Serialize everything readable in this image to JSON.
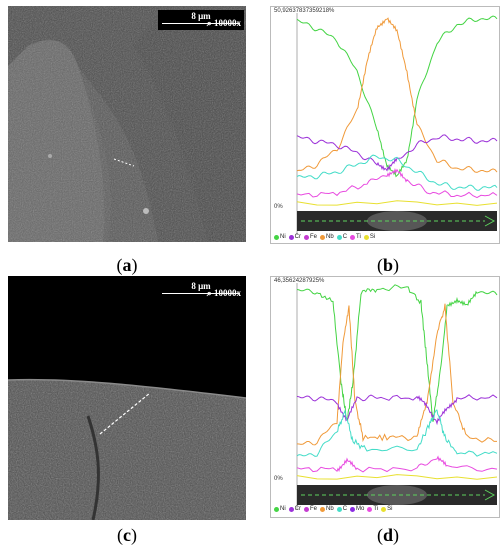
{
  "panels": {
    "a": {
      "caption_open": "(",
      "letter": "a",
      "caption_close": ")",
      "scale": "8 μm",
      "mag": "10000x"
    },
    "b": {
      "caption_open": "(",
      "letter": "b",
      "caption_close": ")",
      "header": "50,92637837359218%",
      "zero": "0%",
      "legend": [
        {
          "name": "Ni",
          "color": "#44d444"
        },
        {
          "name": "Cr",
          "color": "#9b30d8"
        },
        {
          "name": "Fe",
          "color": "#c43ad0"
        },
        {
          "name": "Nb",
          "color": "#f09a3a"
        },
        {
          "name": "C",
          "color": "#44dcc8"
        },
        {
          "name": "Ti",
          "color": "#e84ae0"
        },
        {
          "name": "Si",
          "color": "#e8e030"
        }
      ]
    },
    "c": {
      "caption_open": "(",
      "letter": "c",
      "caption_close": ")",
      "scale": "8 μm",
      "mag": "10000x"
    },
    "d": {
      "caption_open": "(",
      "letter": "d",
      "caption_close": ")",
      "header": "46,35624287925%",
      "zero": "0%",
      "legend": [
        {
          "name": "Ni",
          "color": "#44d444"
        },
        {
          "name": "Cr",
          "color": "#9b30d8"
        },
        {
          "name": "Fe",
          "color": "#c43ad0"
        },
        {
          "name": "Nb",
          "color": "#f09a3a"
        },
        {
          "name": "C",
          "color": "#44dcc8"
        },
        {
          "name": "Mo",
          "color": "#8a2be2"
        },
        {
          "name": "Ti",
          "color": "#e84ae0"
        },
        {
          "name": "Si",
          "color": "#e8e030"
        }
      ]
    }
  },
  "chart_data": [
    {
      "type": "line",
      "xlim": [
        0,
        100
      ],
      "ylim": [
        0,
        100
      ],
      "series": [
        {
          "name": "Ni",
          "color": "#44d444",
          "x": [
            0,
            10,
            20,
            30,
            40,
            45,
            50,
            55,
            60,
            70,
            80,
            90,
            100
          ],
          "y": [
            96,
            92,
            86,
            70,
            40,
            22,
            15,
            25,
            55,
            85,
            94,
            97,
            97
          ]
        },
        {
          "name": "Nb",
          "color": "#f09a3a",
          "x": [
            0,
            10,
            20,
            30,
            35,
            40,
            45,
            50,
            55,
            60,
            70,
            80,
            90,
            100
          ],
          "y": [
            18,
            22,
            30,
            50,
            75,
            92,
            98,
            90,
            70,
            42,
            24,
            20,
            19,
            18
          ]
        },
        {
          "name": "Cr",
          "color": "#9b30d8",
          "x": [
            0,
            10,
            20,
            30,
            40,
            45,
            50,
            60,
            70,
            80,
            90,
            100
          ],
          "y": [
            36,
            34,
            32,
            28,
            22,
            20,
            24,
            32,
            36,
            35,
            34,
            34
          ]
        },
        {
          "name": "C",
          "color": "#44dcc8",
          "x": [
            0,
            10,
            20,
            30,
            40,
            50,
            60,
            70,
            80,
            90,
            100
          ],
          "y": [
            15,
            16,
            18,
            22,
            26,
            24,
            18,
            12,
            10,
            10,
            10
          ]
        },
        {
          "name": "Ti",
          "color": "#e84ae0",
          "x": [
            0,
            20,
            35,
            45,
            50,
            55,
            65,
            80,
            100
          ],
          "y": [
            6,
            7,
            12,
            17,
            18,
            14,
            8,
            6,
            6
          ]
        },
        {
          "name": "Si",
          "color": "#e8e030",
          "x": [
            0,
            100
          ],
          "y": [
            2,
            2
          ]
        }
      ]
    },
    {
      "type": "line",
      "xlim": [
        0,
        100
      ],
      "ylim": [
        0,
        100
      ],
      "series": [
        {
          "name": "Ni",
          "color": "#44d444",
          "x": [
            0,
            10,
            18,
            22,
            25,
            28,
            32,
            40,
            55,
            62,
            65,
            68,
            72,
            75,
            80,
            85,
            90,
            100
          ],
          "y": [
            96,
            96,
            90,
            50,
            30,
            50,
            95,
            97,
            98,
            90,
            60,
            30,
            58,
            88,
            92,
            88,
            96,
            94
          ]
        },
        {
          "name": "Nb",
          "color": "#f09a3a",
          "x": [
            0,
            10,
            20,
            23,
            26,
            29,
            33,
            45,
            60,
            65,
            70,
            74,
            78,
            85,
            100
          ],
          "y": [
            18,
            20,
            30,
            70,
            88,
            40,
            22,
            22,
            22,
            40,
            75,
            88,
            40,
            22,
            20
          ]
        },
        {
          "name": "Cr",
          "color": "#9b30d8",
          "x": [
            0,
            10,
            20,
            25,
            30,
            40,
            60,
            65,
            70,
            75,
            80,
            100
          ],
          "y": [
            42,
            42,
            40,
            30,
            42,
            42,
            42,
            38,
            30,
            36,
            42,
            42
          ]
        },
        {
          "name": "C",
          "color": "#44dcc8",
          "x": [
            0,
            10,
            20,
            24,
            28,
            35,
            60,
            66,
            70,
            74,
            80,
            100
          ],
          "y": [
            12,
            14,
            25,
            35,
            20,
            16,
            16,
            28,
            36,
            22,
            14,
            14
          ]
        },
        {
          "name": "Ti",
          "color": "#e84ae0",
          "x": [
            0,
            20,
            25,
            30,
            60,
            70,
            75,
            100
          ],
          "y": [
            6,
            6,
            10,
            6,
            6,
            12,
            7,
            6
          ]
        },
        {
          "name": "Si",
          "color": "#e8e030",
          "x": [
            0,
            100
          ],
          "y": [
            2,
            2
          ]
        }
      ]
    }
  ]
}
